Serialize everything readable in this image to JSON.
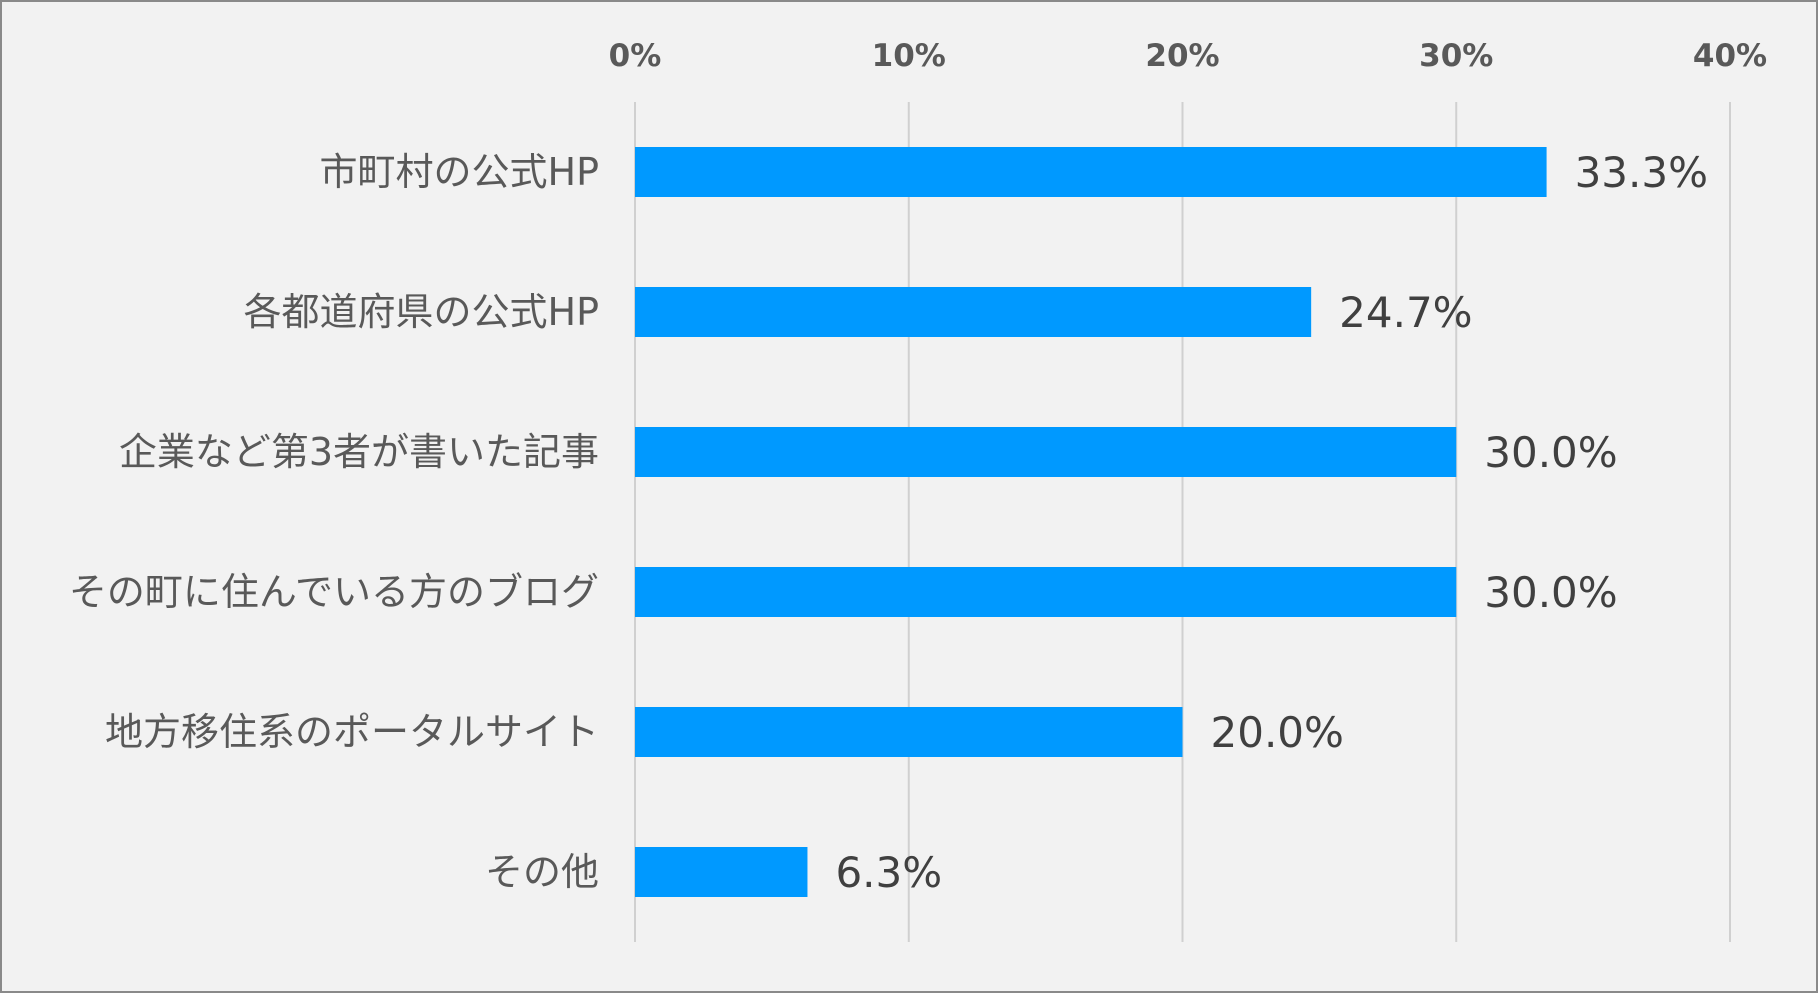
{
  "chart_data": {
    "type": "bar",
    "orientation": "horizontal",
    "categories": [
      "市町村の公式HP",
      "各都道府県の公式HP",
      "企業など第3者が書いた記事",
      "その町に住んでいる方のブログ",
      "地方移住系のポータルサイト",
      "その他"
    ],
    "values": [
      33.3,
      24.7,
      30.0,
      30.0,
      20.0,
      6.3
    ],
    "value_labels": [
      "33.3%",
      "24.7%",
      "30.0%",
      "30.0%",
      "20.0%",
      "6.3%"
    ],
    "xlim": [
      0,
      40
    ],
    "x_ticks": [
      0,
      10,
      20,
      30,
      40
    ],
    "x_tick_labels": [
      "0%",
      "10%",
      "20%",
      "30%",
      "40%"
    ],
    "x_axis_position": "top",
    "grid": true,
    "bar_color": "#0099ff",
    "title": "",
    "xlabel": "",
    "ylabel": ""
  }
}
